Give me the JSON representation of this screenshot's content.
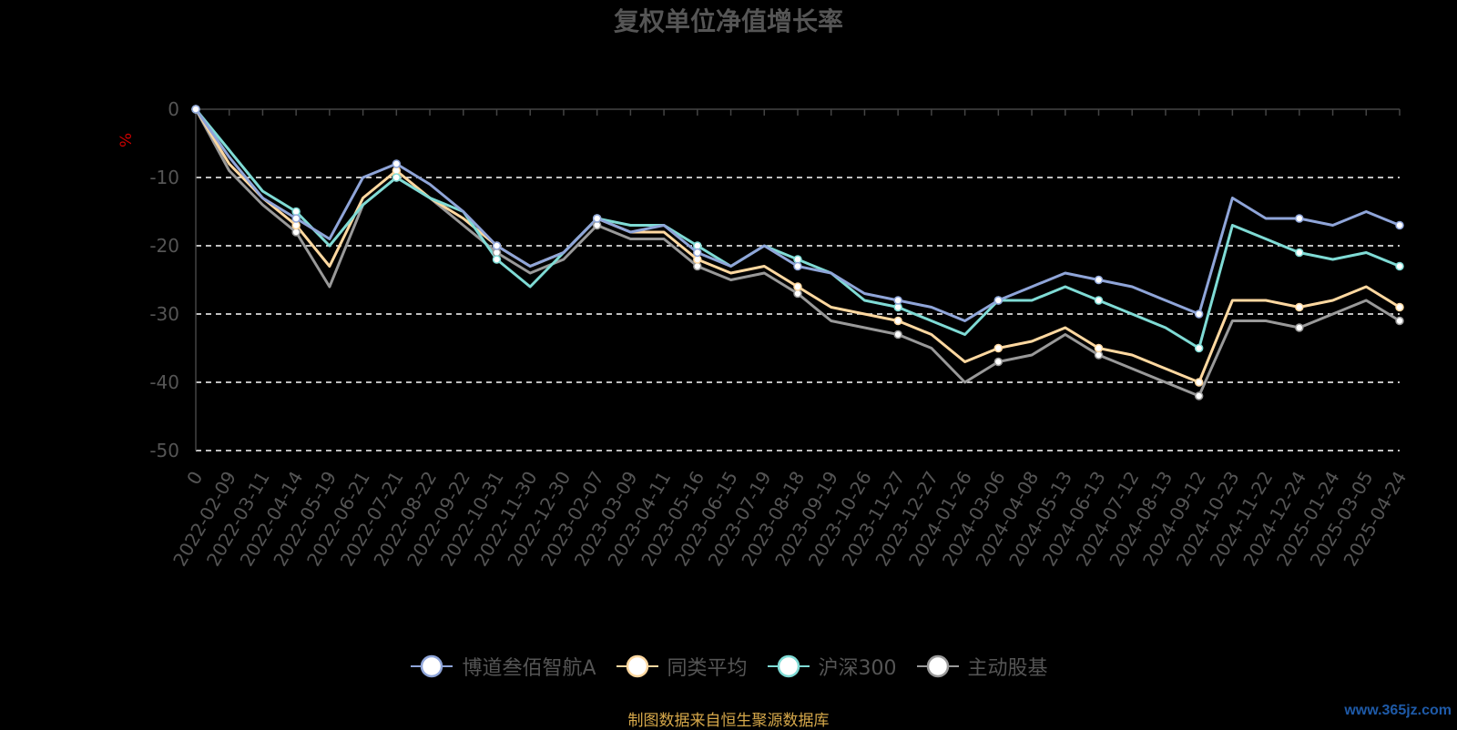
{
  "title": "复权单位净值增长率",
  "source": "制图数据来自恒生聚源数据库",
  "watermark": "www.365jz.com",
  "chart_data": {
    "type": "line",
    "ylabel": "%",
    "ylim": [
      -50,
      0
    ],
    "yticks": [
      0,
      -10,
      -20,
      -30,
      -40,
      -50
    ],
    "grid": "dashed horizontal",
    "legend_position": "bottom",
    "x_tick_labels": [
      "0",
      "2022-02-09",
      "2022-03-11",
      "2022-04-14",
      "2022-05-19",
      "2022-06-21",
      "2022-07-21",
      "2022-08-22",
      "2022-09-22",
      "2022-10-31",
      "2022-11-30",
      "2022-12-30",
      "2023-02-07",
      "2023-03-09",
      "2023-04-11",
      "2023-05-16",
      "2023-06-15",
      "2023-07-19",
      "2023-08-18",
      "2023-09-19",
      "2023-10-26",
      "2023-11-27",
      "2023-12-27",
      "2024-01-26",
      "2024-03-06",
      "2024-04-08",
      "2024-05-13",
      "2024-06-13",
      "2024-07-12",
      "2024-08-13",
      "2024-09-12",
      "2024-10-23",
      "2024-11-22",
      "2024-12-24",
      "2025-01-24",
      "2025-03-05",
      "2025-04-24"
    ],
    "x": [
      "0",
      "2022-02-09",
      "2022-03-11",
      "2022-04-14",
      "2022-05-19",
      "2022-06-21",
      "2022-07-21",
      "2022-08-22",
      "2022-09-22",
      "2022-10-31",
      "2022-11-30",
      "2022-12-30",
      "2023-02-07",
      "2023-03-09",
      "2023-04-11",
      "2023-05-16",
      "2023-06-15",
      "2023-07-19",
      "2023-08-18",
      "2023-09-19",
      "2023-10-26",
      "2023-11-27",
      "2023-12-27",
      "2024-01-26",
      "2024-03-06",
      "2024-04-08",
      "2024-05-13",
      "2024-06-13",
      "2024-07-12",
      "2024-08-13",
      "2024-09-12",
      "2024-10-23",
      "2024-11-22",
      "2024-12-24",
      "2025-01-24",
      "2025-03-05",
      "2025-04-24"
    ],
    "series": [
      {
        "name": "博道叁佰智航A",
        "color": "#8fa5d9",
        "values": [
          0,
          -7,
          -13,
          -16,
          -19,
          -10,
          -8,
          -11,
          -15,
          -20,
          -23,
          -21,
          -16,
          -18,
          -17,
          -21,
          -23,
          -20,
          -23,
          -24,
          -27,
          -28,
          -29,
          -31,
          -28,
          -26,
          -24,
          -25,
          -26,
          -28,
          -30,
          -13,
          -16,
          -16,
          -17,
          -15,
          -17
        ]
      },
      {
        "name": "同类平均",
        "color": "#ffd8a0",
        "values": [
          0,
          -8,
          -13,
          -17,
          -23,
          -13,
          -9,
          -13,
          -16,
          -20,
          -23,
          -21,
          -16,
          -18,
          -18,
          -22,
          -24,
          -23,
          -26,
          -29,
          -30,
          -31,
          -33,
          -37,
          -35,
          -34,
          -32,
          -35,
          -36,
          -38,
          -40,
          -28,
          -28,
          -29,
          -28,
          -26,
          -29
        ]
      },
      {
        "name": "沪深300",
        "color": "#7fdbd5",
        "values": [
          0,
          -6,
          -12,
          -15,
          -20,
          -14,
          -10,
          -13,
          -15,
          -22,
          -26,
          -21,
          -16,
          -17,
          -17,
          -20,
          -23,
          -20,
          -22,
          -24,
          -28,
          -29,
          -31,
          -33,
          -28,
          -28,
          -26,
          -28,
          -30,
          -32,
          -35,
          -17,
          -19,
          -21,
          -22,
          -21,
          -23
        ]
      },
      {
        "name": "主动股基",
        "color": "#999999",
        "values": [
          0,
          -9,
          -14,
          -18,
          -26,
          -14,
          -10,
          -13,
          -17,
          -21,
          -24,
          -22,
          -17,
          -19,
          -19,
          -23,
          -25,
          -24,
          -27,
          -31,
          -32,
          -33,
          -35,
          -40,
          -37,
          -36,
          -33,
          -36,
          -38,
          -40,
          -42,
          -31,
          -31,
          -32,
          -30,
          -28,
          -31
        ]
      }
    ]
  }
}
